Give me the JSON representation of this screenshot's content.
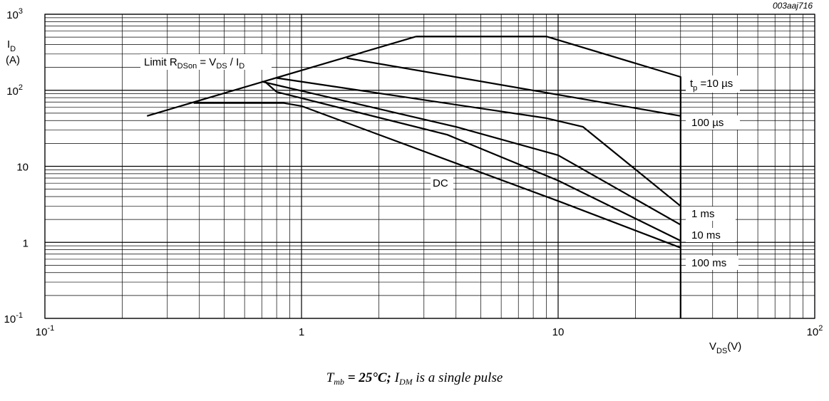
{
  "figure_id": "003aaj716",
  "caption": {
    "t_symbol": "T",
    "t_sub": "mb",
    "condition": " = 25°C;  ",
    "i_symbol": "I",
    "i_sub": "DM",
    "rest": " is a single pulse"
  },
  "annotations": {
    "limit_prefix": "Limit R",
    "limit_sub1": "DSon",
    "limit_mid": " = V",
    "limit_sub2": "DS",
    "limit_mid2": " / I",
    "limit_sub3": "D",
    "tp_prefix": "t",
    "tp_sub": "p",
    "tp_value": " =10 µs",
    "dc": "DC"
  },
  "chart_data": {
    "type": "line",
    "title": "",
    "x_scale": "log",
    "y_scale": "log",
    "xlim": [
      0.1,
      100
    ],
    "ylim": [
      0.1,
      1000
    ],
    "grid": true,
    "x_axis": {
      "label_main": "V",
      "label_sub": "DS",
      "label_unit": "(V)",
      "ticks": [
        {
          "value": 0.1,
          "base": "10",
          "exp": "-1"
        },
        {
          "value": 1,
          "base": "1",
          "exp": ""
        },
        {
          "value": 10,
          "base": "10",
          "exp": ""
        },
        {
          "value": 100,
          "base": "10",
          "exp": "2"
        }
      ]
    },
    "y_axis": {
      "label_main": "I",
      "label_sub": "D",
      "label_unit": "(A)",
      "ticks": [
        {
          "value": 0.1,
          "base": "10",
          "exp": "-1"
        },
        {
          "value": 1,
          "base": "1",
          "exp": ""
        },
        {
          "value": 10,
          "base": "10",
          "exp": ""
        },
        {
          "value": 100,
          "base": "10",
          "exp": "2"
        },
        {
          "value": 1000,
          "base": "10",
          "exp": "3"
        }
      ]
    },
    "series": [
      {
        "name": "Limit RDSon = VDS / ID",
        "points": [
          [
            0.25,
            46
          ],
          [
            2.8,
            510
          ]
        ]
      },
      {
        "name": "tp =10 µs",
        "points": [
          [
            2.8,
            510
          ],
          [
            9.0,
            510
          ],
          [
            30,
            150
          ],
          [
            30,
            0.1
          ]
        ]
      },
      {
        "name": "100 µs",
        "points": [
          [
            1.5,
            265
          ],
          [
            30,
            46
          ]
        ]
      },
      {
        "name": "1 ms",
        "points": [
          [
            0.8,
            145
          ],
          [
            9.0,
            43
          ],
          [
            12.5,
            33
          ],
          [
            30,
            3.0
          ]
        ]
      },
      {
        "name": "10 ms",
        "points": [
          [
            0.7,
            130
          ],
          [
            4.0,
            33
          ],
          [
            10.0,
            14
          ],
          [
            30,
            1.7
          ]
        ]
      },
      {
        "name": "100 ms",
        "points": [
          [
            0.72,
            130
          ],
          [
            0.8,
            95
          ],
          [
            3.7,
            26
          ],
          [
            10.0,
            6.5
          ],
          [
            30,
            1.05
          ]
        ]
      },
      {
        "name": "DC",
        "points": [
          [
            0.38,
            68
          ],
          [
            0.85,
            68
          ],
          [
            1.0,
            62
          ],
          [
            10.0,
            3.5
          ],
          [
            30,
            0.85
          ]
        ]
      }
    ],
    "curve_labels": [
      {
        "text": "1 ms",
        "series": "1 ms"
      },
      {
        "text": "10 ms",
        "series": "10 ms"
      },
      {
        "text": "100 ms",
        "series": "100 ms"
      },
      {
        "text": "100 µs",
        "series": "100 µs"
      }
    ]
  }
}
